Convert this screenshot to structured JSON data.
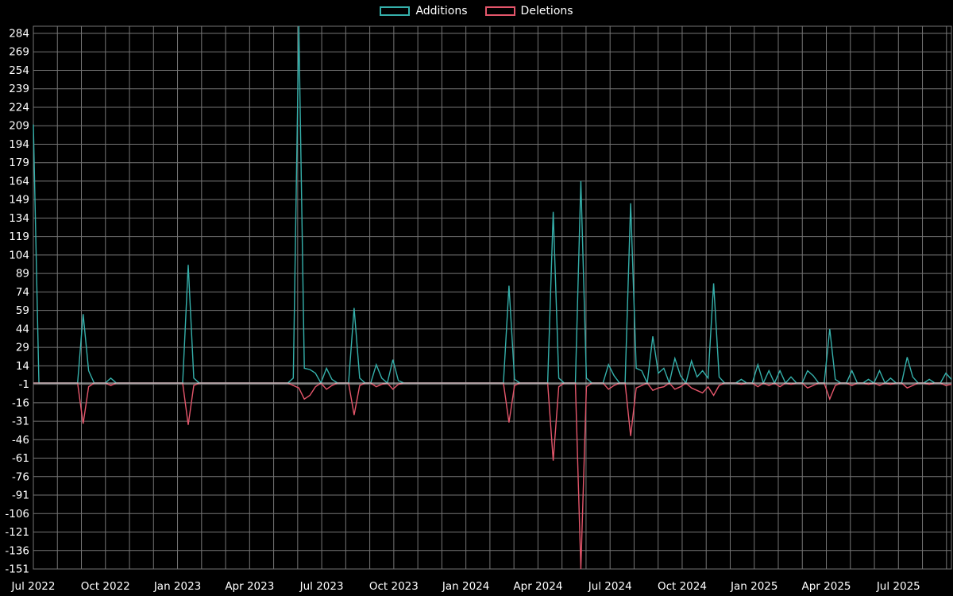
{
  "page": {
    "background": "#000000"
  },
  "chart_data": {
    "type": "line",
    "title": "",
    "legend_position": "top-center",
    "grid": true,
    "baseline": 0,
    "n_weeks": 167,
    "x_axis": {
      "tick_labels": [
        "Jul 2022",
        "Oct 2022",
        "Jan 2023",
        "Apr 2023",
        "Jul 2023",
        "Oct 2023",
        "Jan 2024",
        "Apr 2024",
        "Jul 2024",
        "Oct 2024",
        "Jan 2025",
        "Apr 2025",
        "Jul 2025"
      ],
      "months_total": 38,
      "weeks_per_month": 4.345,
      "label_every_months": 3
    },
    "y_axis": {
      "min": -151,
      "max": 284,
      "step": 15,
      "ticks": [
        284,
        269,
        254,
        239,
        224,
        209,
        194,
        179,
        164,
        149,
        134,
        119,
        104,
        89,
        74,
        59,
        44,
        29,
        14,
        -1,
        -16,
        -31,
        -46,
        -61,
        -76,
        -91,
        -106,
        -121,
        -136,
        -151
      ]
    },
    "series_meta": [
      {
        "name": "Additions",
        "color": "#35b0ab"
      },
      {
        "name": "Deletions",
        "color": "#e4566b"
      }
    ],
    "style": {
      "background": "#000000",
      "grid_color": "#757575",
      "text_color": "#ffffff",
      "zero_line_color": "#cccccc"
    },
    "points_format": [
      "week",
      "additions",
      "deletions"
    ],
    "points": [
      [
        0,
        210,
        0
      ],
      [
        9,
        56,
        -33
      ],
      [
        10,
        10,
        -3
      ],
      [
        14,
        4,
        -2
      ],
      [
        28,
        96,
        -34
      ],
      [
        29,
        4,
        -2
      ],
      [
        47,
        4,
        -2
      ],
      [
        48,
        290,
        -4
      ],
      [
        49,
        12,
        -13
      ],
      [
        50,
        11,
        -10
      ],
      [
        51,
        8,
        -3
      ],
      [
        53,
        12,
        -5
      ],
      [
        54,
        3,
        -2
      ],
      [
        58,
        61,
        -26
      ],
      [
        59,
        4,
        -2
      ],
      [
        62,
        15,
        -3
      ],
      [
        63,
        4,
        -1
      ],
      [
        65,
        19,
        -5
      ],
      [
        66,
        2,
        -1
      ],
      [
        86,
        79,
        -32
      ],
      [
        87,
        3,
        -2
      ],
      [
        94,
        139,
        -63
      ],
      [
        95,
        4,
        -3
      ],
      [
        99,
        164,
        -151
      ],
      [
        100,
        4,
        -3
      ],
      [
        104,
        15,
        -5
      ],
      [
        105,
        6,
        -2
      ],
      [
        108,
        146,
        -43
      ],
      [
        109,
        12,
        -4
      ],
      [
        110,
        10,
        -2
      ],
      [
        112,
        38,
        -6
      ],
      [
        113,
        8,
        -4
      ],
      [
        114,
        12,
        -3
      ],
      [
        116,
        20,
        -5
      ],
      [
        117,
        6,
        -3
      ],
      [
        119,
        18,
        -4
      ],
      [
        120,
        5,
        -6
      ],
      [
        121,
        10,
        -8
      ],
      [
        122,
        4,
        -3
      ],
      [
        123,
        81,
        -10
      ],
      [
        124,
        5,
        -2
      ],
      [
        128,
        3,
        -1
      ],
      [
        131,
        15,
        -3
      ],
      [
        133,
        10,
        -2
      ],
      [
        135,
        10,
        -3
      ],
      [
        137,
        5,
        -1
      ],
      [
        140,
        10,
        -4
      ],
      [
        141,
        6,
        -2
      ],
      [
        144,
        44,
        -13
      ],
      [
        145,
        3,
        -2
      ],
      [
        148,
        10,
        -2
      ],
      [
        151,
        3,
        -1
      ],
      [
        153,
        10,
        -2
      ],
      [
        155,
        4,
        -1
      ],
      [
        158,
        21,
        -4
      ],
      [
        159,
        5,
        -2
      ],
      [
        162,
        3,
        -1
      ],
      [
        165,
        8,
        -2
      ],
      [
        166,
        3,
        -1
      ]
    ]
  }
}
